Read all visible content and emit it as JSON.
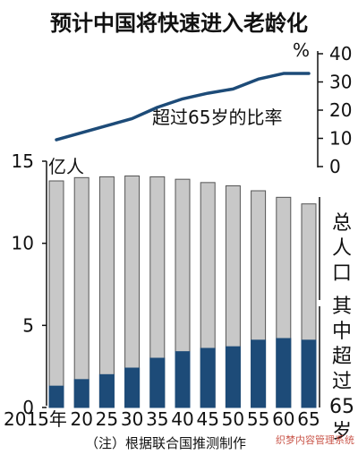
{
  "chart_data": [
    {
      "type": "line",
      "title": "预计中国将快速进入老龄化",
      "series": [
        {
          "name": "超过65岁的比率",
          "x": [
            "2015年",
            "20",
            "25",
            "30",
            "35",
            "40",
            "45",
            "50",
            "55",
            "60",
            "65"
          ],
          "values": [
            9.5,
            12,
            14.5,
            17,
            21,
            24,
            26,
            27.5,
            31,
            33,
            33
          ]
        }
      ],
      "ylabel": "%",
      "ylim": [
        0,
        40
      ],
      "yticks": [
        "40",
        "30",
        "20",
        "10",
        "0"
      ],
      "yaxis_side": "right",
      "color": "#1d4b78"
    },
    {
      "type": "bar",
      "categories": [
        "2015年",
        "20",
        "25",
        "30",
        "35",
        "40",
        "45",
        "50",
        "55",
        "60",
        "65"
      ],
      "series": [
        {
          "name": "总人口",
          "values": [
            13.8,
            14.0,
            14.05,
            14.1,
            14.05,
            13.9,
            13.7,
            13.5,
            13.2,
            12.8,
            12.4
          ],
          "color": "#c8c8c8"
        },
        {
          "name": "其中超过65岁",
          "values": [
            1.3,
            1.7,
            2.0,
            2.4,
            3.0,
            3.4,
            3.6,
            3.7,
            4.1,
            4.2,
            4.1
          ],
          "color": "#1d4b78"
        }
      ],
      "ylabel": "亿人",
      "ylim": [
        0,
        15
      ],
      "yticks": [
        "15",
        "10",
        "5",
        "0"
      ],
      "grid": false
    }
  ],
  "footnote": "（注）根据联合国推测制作",
  "watermark": "织梦内容管理系统"
}
